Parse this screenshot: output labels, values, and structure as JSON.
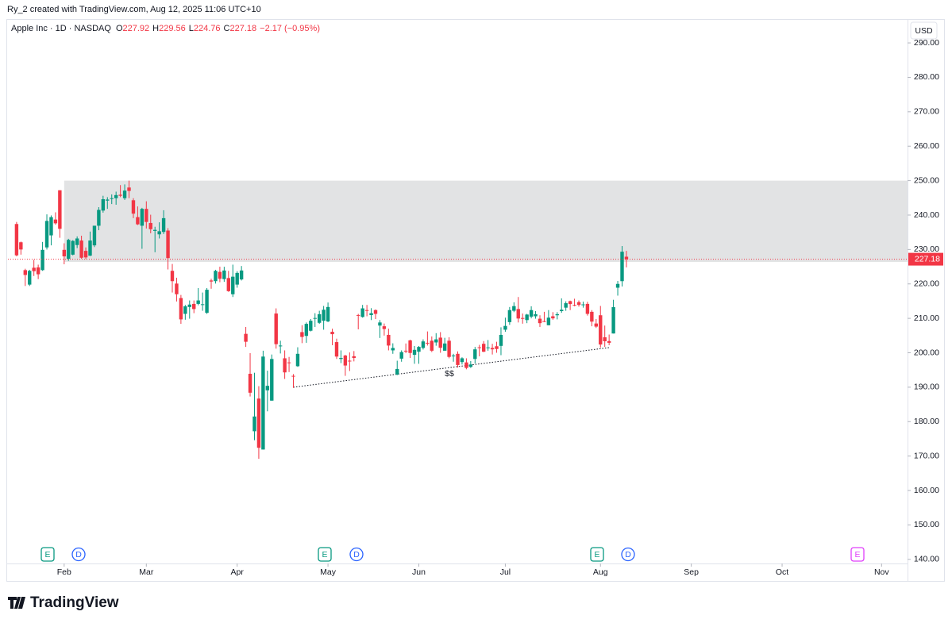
{
  "header": "Ry_2 created with TradingView.com, Aug 12, 2025 11:06 UTC+10",
  "chart_data": {
    "type": "candlestick",
    "symbol": "Apple Inc · 1D · NASDAQ",
    "ohlc_legend": [
      {
        "label": "O",
        "value": 227.92
      },
      {
        "label": "H",
        "value": 229.56
      },
      {
        "label": "L",
        "value": 224.76
      },
      {
        "label": "C",
        "value": 227.18
      }
    ],
    "change": "−2.17 (−0.95%)",
    "currency": "USD",
    "up_color": "#089981",
    "down_color": "#f23645",
    "open": [
      237.4,
      232.1,
      224.0,
      219.8,
      224.7,
      224.8,
      224.0,
      230.6,
      234.1,
      238.7,
      247.2,
      229.9,
      227.3,
      228.5,
      231.3,
      232.6,
      229.6,
      228.2,
      231.2,
      236.9,
      241.3,
      244.2,
      244.7,
      244.9,
      245.9,
      244.9,
      248.0,
      244.3,
      239.4,
      236.9,
      241.8,
      237.7,
      235.4,
      234.4,
      235.1,
      235.5,
      223.8,
      220.1,
      215.9,
      211.3,
      213.3,
      214.2,
      214.2,
      213.9,
      211.6,
      221.0,
      220.8,
      223.5,
      221.4,
      221.7,
      217.0,
      219.8,
      221.3,
      205.5,
      193.9,
      177.2,
      186.7,
      171.9,
      189.1,
      186.1,
      211.4,
      201.9,
      198.4,
      197.2,
      193.3,
      196.1,
      206.0,
      204.9,
      206.4,
      210.0,
      208.7,
      209.3,
      209.1,
      206.1,
      203.1,
      198.2,
      199.2,
      197.7,
      199.0,
      210.97,
      210.4,
      212.4,
      210.95,
      212.4,
      207.9,
      207.7,
      205.2,
      200.7,
      193.7,
      198.3,
      200.6,
      203.6,
      199.4,
      200.3,
      201.4,
      202.9,
      203.5,
      203.0,
      204.4,
      200.6,
      203.5,
      199.1,
      199.7,
      197.3,
      197.2,
      195.9,
      198.2,
      201.6,
      202.6,
      201.45,
      201.4,
      201.9,
      202.0,
      206.7,
      208.9,
      212.2,
      212.7,
      210.1,
      209.5,
      210.5,
      210.6,
      209.9,
      209.2,
      208.0,
      210.6,
      210.9,
      212.1,
      213.1,
      215.0,
      213.9,
      214.7,
      214.0,
      214.2,
      211.9,
      208.5,
      210.9,
      204.5,
      203.4,
      205.6,
      218.9,
      220.8,
      227.9
    ],
    "high": [
      238.0,
      232.3,
      224.4,
      224.1,
      227.0,
      225.6,
      232.2,
      240.2,
      239.9,
      240.8,
      247.2,
      231.8,
      233.1,
      232.7,
      233.8,
      234.0,
      230.6,
      235.2,
      236.9,
      242.3,
      245.6,
      245.2,
      246.0,
      246.8,
      248.7,
      248.9,
      250.0,
      244.9,
      242.5,
      242.1,
      244.0,
      240.1,
      236.6,
      237.9,
      241.4,
      236.2,
      225.8,
      221.8,
      216.8,
      213.9,
      215.2,
      215.2,
      218.8,
      217.5,
      218.8,
      221.5,
      224.1,
      225.0,
      224.99,
      223.8,
      225.6,
      223.7,
      225.2,
      207.5,
      199.9,
      194.2,
      190.3,
      200.6,
      194.8,
      199.5,
      212.9,
      203.5,
      200.7,
      198.8,
      193.8,
      201.6,
      208.0,
      208.8,
      209.8,
      211.5,
      212.2,
      213.6,
      214.6,
      206.99,
      204.1,
      200.7,
      199.4,
      200.1,
      200.5,
      211.3,
      213.9,
      213.9,
      212.96,
      212.6,
      209.5,
      208.5,
      207.0,
      202.75,
      197.7,
      200.7,
      202.7,
      203.8,
      201.96,
      201.96,
      203.9,
      206.2,
      204.75,
      205.7,
      206.0,
      204.35,
      204.5,
      199.7,
      200.4,
      198.7,
      198.4,
      197.6,
      201.7,
      202.3,
      203.4,
      203.7,
      202.6,
      203.2,
      207.4,
      210.2,
      213.3,
      214.65,
      216.2,
      211.4,
      211.3,
      213.5,
      212.1,
      210.9,
      211.9,
      212.4,
      211.8,
      211.8,
      215.8,
      214.95,
      215.15,
      215.7,
      215.2,
      214.85,
      214.8,
      212.4,
      209.8,
      213.6,
      207.9,
      205.3,
      215.4,
      220.85,
      231.0,
      229.6
    ],
    "low": [
      228.0,
      228.5,
      219.4,
      219.4,
      222.3,
      221.4,
      223.8,
      230.0,
      231.2,
      237.2,
      233.4,
      225.7,
      226.7,
      228.3,
      230.4,
      227.3,
      227.2,
      228.1,
      230.7,
      235.6,
      240.7,
      241.8,
      243.2,
      243.0,
      245.2,
      244.4,
      244.9,
      239.1,
      237.1,
      230.2,
      236.1,
      234.7,
      229.2,
      233.2,
      234.5,
      224.2,
      217.5,
      214.9,
      208.4,
      209.6,
      209.9,
      211.5,
      213.8,
      212.2,
      211.3,
      218.6,
      220.1,
      220.5,
      220.6,
      217.7,
      216.2,
      218.9,
      221.0,
      201.7,
      187.3,
      174.6,
      169.2,
      171.9,
      183.0,
      186.1,
      201.2,
      199.8,
      192.4,
      194.4,
      189.8,
      195.9,
      202.8,
      202.9,
      206.2,
      207.5,
      208.4,
      206.7,
      208.9,
      202.2,
      198.2,
      197.0,
      193.3,
      194.7,
      197.5,
      206.8,
      210.2,
      210.6,
      209.5,
      209.8,
      204.3,
      205.0,
      200.7,
      199.7,
      193.5,
      197.4,
      199.9,
      198.5,
      196.8,
      196.8,
      200.95,
      202.1,
      200.2,
      202.05,
      200.0,
      200.6,
      198.4,
      197.4,
      195.7,
      196.6,
      195.2,
      195.6,
      196.9,
      198.96,
      200.2,
      200.6,
      199.5,
      200.0,
      199.3,
      206.1,
      208.1,
      211.8,
      208.8,
      208.45,
      208.6,
      210.0,
      209.9,
      207.5,
      208.9,
      208.0,
      209.6,
      209.7,
      211.6,
      212.2,
      212.4,
      213.5,
      213.4,
      213.1,
      210.8,
      207.7,
      207.2,
      201.5,
      201.7,
      202.2,
      205.6,
      216.6,
      219.25,
      224.8
    ],
    "close": [
      228.3,
      230.0,
      222.6,
      223.8,
      223.7,
      222.8,
      229.9,
      238.3,
      239.4,
      237.6,
      236.0,
      228.0,
      232.8,
      232.5,
      233.2,
      227.6,
      227.7,
      232.6,
      236.9,
      241.5,
      244.6,
      244.5,
      244.9,
      245.8,
      245.6,
      247.1,
      247.0,
      240.4,
      237.3,
      241.8,
      238.0,
      235.9,
      235.7,
      235.3,
      239.1,
      227.5,
      220.8,
      217.0,
      209.7,
      213.5,
      214.0,
      212.7,
      215.2,
      214.1,
      218.3,
      220.7,
      223.8,
      221.5,
      223.9,
      217.9,
      222.1,
      223.2,
      223.9,
      203.2,
      188.4,
      181.5,
      172.4,
      198.9,
      190.4,
      198.2,
      202.5,
      202.1,
      194.3,
      197.0,
      193.2,
      199.7,
      204.6,
      208.4,
      209.3,
      210.1,
      211.2,
      212.5,
      213.3,
      205.4,
      198.9,
      198.5,
      196.3,
      197.5,
      198.5,
      210.8,
      212.9,
      212.3,
      211.5,
      211.3,
      208.8,
      206.9,
      202.1,
      201.4,
      195.3,
      200.2,
      200.4,
      199.95,
      200.85,
      201.7,
      203.3,
      202.8,
      200.6,
      203.9,
      201.45,
      202.7,
      198.8,
      199.2,
      196.45,
      198.4,
      195.6,
      196.6,
      201.0,
      201.5,
      200.3,
      201.56,
      201.0,
      201.1,
      205.2,
      207.8,
      212.4,
      213.55,
      209.95,
      210.0,
      211.1,
      212.4,
      211.2,
      208.6,
      209.1,
      210.2,
      210.0,
      211.2,
      212.5,
      214.4,
      214.15,
      213.8,
      213.9,
      214.05,
      211.3,
      209.05,
      207.6,
      202.4,
      203.35,
      202.9,
      213.25,
      220.0,
      229.35,
      227.18
    ],
    "xlim": [
      -2,
      206
    ],
    "xticks": [
      {
        "value": 11,
        "label": "Feb"
      },
      {
        "value": 30,
        "label": "Mar"
      },
      {
        "value": 51,
        "label": "Apr"
      },
      {
        "value": 72,
        "label": "May"
      },
      {
        "value": 93,
        "label": "Jun"
      },
      {
        "value": 113,
        "label": "Jul"
      },
      {
        "value": 135,
        "label": "Aug"
      },
      {
        "value": 156,
        "label": "Sep"
      },
      {
        "value": 177,
        "label": "Oct"
      },
      {
        "value": 200,
        "label": "Nov"
      }
    ],
    "ylim": [
      133.5,
      296.7
    ],
    "yticks": [
      {
        "value": 140,
        "label": "140.00"
      },
      {
        "value": 150,
        "label": "150.00"
      },
      {
        "value": 160,
        "label": "160.00"
      },
      {
        "value": 170,
        "label": "170.00"
      },
      {
        "value": 180,
        "label": "180.00"
      },
      {
        "value": 190,
        "label": "190.00"
      },
      {
        "value": 200,
        "label": "200.00"
      },
      {
        "value": 210,
        "label": "210.00"
      },
      {
        "value": 220,
        "label": "220.00"
      },
      {
        "value": 230,
        "label": "230.00"
      },
      {
        "value": 240,
        "label": "240.00"
      },
      {
        "value": 250,
        "label": "250.00"
      },
      {
        "value": 260,
        "label": "260.00"
      },
      {
        "value": 270,
        "label": "270.00"
      },
      {
        "value": 280,
        "label": "280.00"
      },
      {
        "value": 290,
        "label": "290.00"
      }
    ],
    "last_price": 227.18,
    "zone": {
      "x_start": 11,
      "ylim": [
        226.4,
        250
      ]
    },
    "trendline": {
      "x": [
        64,
        137
      ],
      "y": [
        190,
        201.5
      ]
    },
    "annotation": "$$",
    "events": [
      "E",
      "D",
      "E",
      "D",
      "E",
      "D",
      "E"
    ]
  },
  "footer": "TradingView"
}
